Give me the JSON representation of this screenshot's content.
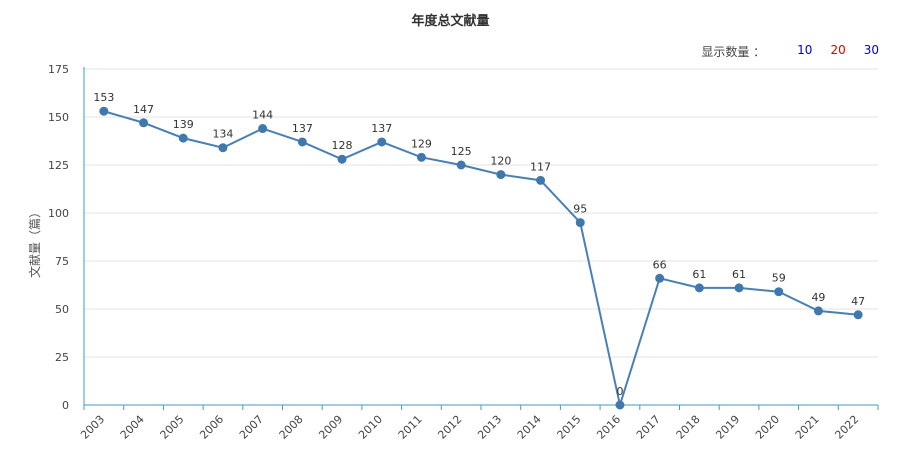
{
  "header": {
    "title": "年度总文献量"
  },
  "display_controls": {
    "label": "显示数量 ：",
    "options": [
      {
        "label": "10",
        "color": "#0000cc"
      },
      {
        "label": "20",
        "color": "#dd0000"
      },
      {
        "label": "30",
        "color": "#0000cc"
      }
    ]
  },
  "colors": {
    "line": "#4a7fb5",
    "marker": "#3f78ad",
    "grid": "#e3e3e3",
    "axis": "#3d9fc0"
  },
  "chart_data": {
    "type": "line",
    "title": "年度总文献量",
    "xlabel": "",
    "ylabel": "文献量（篇）",
    "ylim": [
      0,
      175
    ],
    "yticks": [
      0,
      25,
      50,
      75,
      100,
      125,
      150,
      175
    ],
    "grid": true,
    "categories": [
      "2003",
      "2004",
      "2005",
      "2006",
      "2007",
      "2008",
      "2009",
      "2010",
      "2011",
      "2012",
      "2013",
      "2014",
      "2015",
      "2016",
      "2017",
      "2018",
      "2019",
      "2020",
      "2021",
      "2022"
    ],
    "series": [
      {
        "values": [
          153,
          147,
          139,
          134,
          144,
          137,
          128,
          137,
          129,
          125,
          120,
          117,
          95,
          0,
          66,
          61,
          61,
          59,
          49,
          47
        ]
      }
    ],
    "data_labels": [
      "153",
      "147",
      "139",
      "134",
      "144",
      "137",
      "128",
      "137",
      "129",
      "125",
      "120",
      "117",
      "95",
      "0",
      "66",
      "61",
      "61",
      "59",
      "49",
      "47"
    ]
  }
}
